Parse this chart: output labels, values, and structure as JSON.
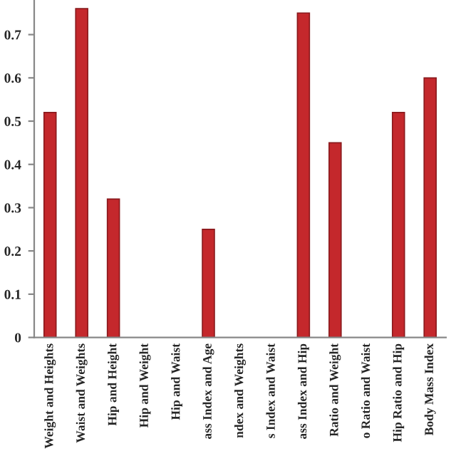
{
  "chart_data": {
    "type": "bar",
    "categories": [
      "Weight and Heights",
      "Waist and Weights",
      "Hip and Height",
      "Hip and Weight",
      "Hip and Waist",
      "ass Index and Age",
      "ndex and Weights",
      "s Index and Waist",
      "ass Index and Hip",
      "Ratio and Weight",
      "o Ratio and Waist",
      "Hip Ratio and Hip",
      "Body Mass Index"
    ],
    "values": [
      0.52,
      0.76,
      0.32,
      null,
      null,
      0.25,
      null,
      null,
      0.75,
      0.45,
      null,
      0.52,
      0.6
    ],
    "color": "#c4282c",
    "ylim": [
      0,
      0.78
    ],
    "yticks": [
      0,
      0.1,
      0.2,
      0.3,
      0.4,
      0.5,
      0.6,
      0.7
    ],
    "grid": false,
    "legend": false
  }
}
